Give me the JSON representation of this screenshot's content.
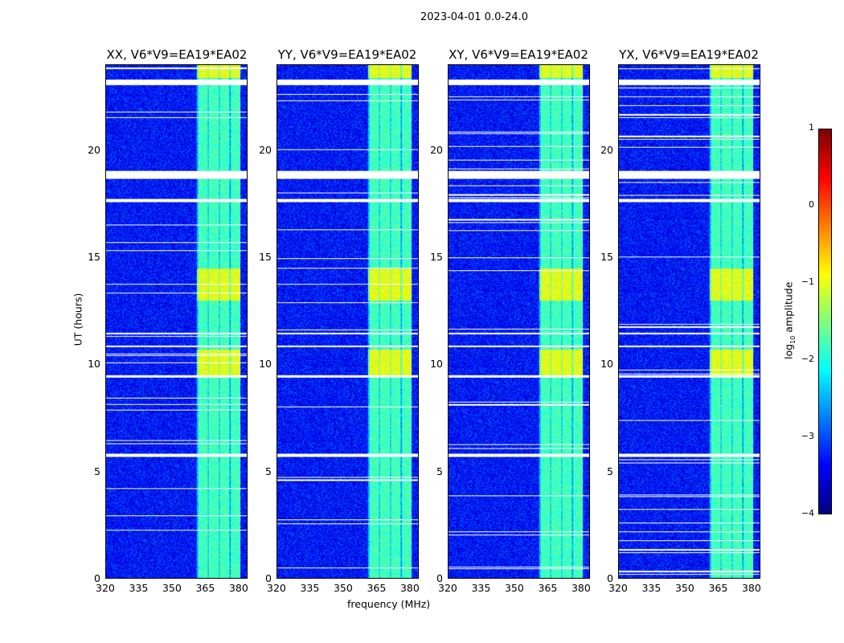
{
  "chart_data": {
    "type": "heatmap",
    "title": "2023-04-01 0.0-24.0",
    "panels": [
      {
        "title": "XX, V6*V9=EA19*EA02"
      },
      {
        "title": "YY, V6*V9=EA19*EA02"
      },
      {
        "title": "XY, V6*V9=EA19*EA02"
      },
      {
        "title": "YX, V6*V9=EA19*EA02"
      }
    ],
    "xlabel": "frequency (MHz)",
    "ylabel": "UT (hours)",
    "xlim": [
      320,
      384
    ],
    "ylim": [
      0,
      24
    ],
    "xticks": [
      "320",
      "335",
      "350",
      "365",
      "380"
    ],
    "yticks": [
      "0",
      "5",
      "10",
      "15",
      "20"
    ],
    "colorbar": {
      "label": "log10 amplitude",
      "label_main": "log",
      "label_sub": "10",
      "label_rest": " amplitude",
      "range": [
        -4,
        1
      ],
      "ticks": [
        "1",
        "0",
        "−1",
        "−2",
        "−3",
        "−4"
      ],
      "colormap": "jet"
    },
    "bright_band_mhz": [
      361,
      381
    ],
    "flagged_hours": [
      [
        23.1,
        23.35
      ],
      [
        18.7,
        19.05
      ],
      [
        17.6,
        17.75
      ],
      [
        11.4,
        11.5
      ],
      [
        10.8,
        10.9
      ],
      [
        9.4,
        9.5
      ],
      [
        5.7,
        5.85
      ]
    ],
    "background_log_amplitude": -3.3,
    "band_log_amplitude": -1.8
  }
}
